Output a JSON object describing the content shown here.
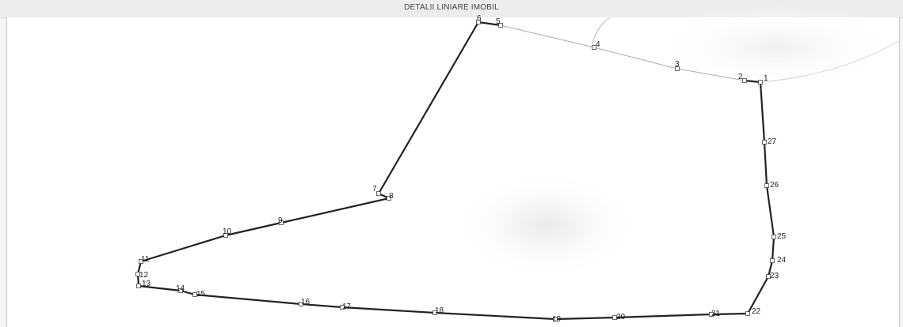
{
  "title": "DETALII LINIARE IMOBIL",
  "points": [
    {
      "label": "1",
      "bold_edge_to_next": true
    },
    {
      "label": "2",
      "bold_edge_to_next": false
    },
    {
      "label": "3",
      "bold_edge_to_next": false
    },
    {
      "label": "4",
      "bold_edge_to_next": false
    },
    {
      "label": "5",
      "bold_edge_to_next": true
    },
    {
      "label": "6",
      "bold_edge_to_next": true
    },
    {
      "label": "7",
      "bold_edge_to_next": true
    },
    {
      "label": "8",
      "bold_edge_to_next": true
    },
    {
      "label": "9",
      "bold_edge_to_next": true
    },
    {
      "label": "10",
      "bold_edge_to_next": true
    },
    {
      "label": "11",
      "bold_edge_to_next": true
    },
    {
      "label": "12",
      "bold_edge_to_next": true
    },
    {
      "label": "13",
      "bold_edge_to_next": true
    },
    {
      "label": "14",
      "bold_edge_to_next": true
    },
    {
      "label": "15",
      "bold_edge_to_next": true
    },
    {
      "label": "16",
      "bold_edge_to_next": true
    },
    {
      "label": "17",
      "bold_edge_to_next": true
    },
    {
      "label": "18",
      "bold_edge_to_next": true
    },
    {
      "label": "19",
      "bold_edge_to_next": true
    },
    {
      "label": "20",
      "bold_edge_to_next": true
    },
    {
      "label": "21",
      "bold_edge_to_next": true
    },
    {
      "label": "22",
      "bold_edge_to_next": true
    },
    {
      "label": "23",
      "bold_edge_to_next": true
    },
    {
      "label": "24",
      "bold_edge_to_next": true
    },
    {
      "label": "25",
      "bold_edge_to_next": true
    },
    {
      "label": "26",
      "bold_edge_to_next": true
    },
    {
      "label": "27",
      "bold_edge_to_next": true
    }
  ]
}
